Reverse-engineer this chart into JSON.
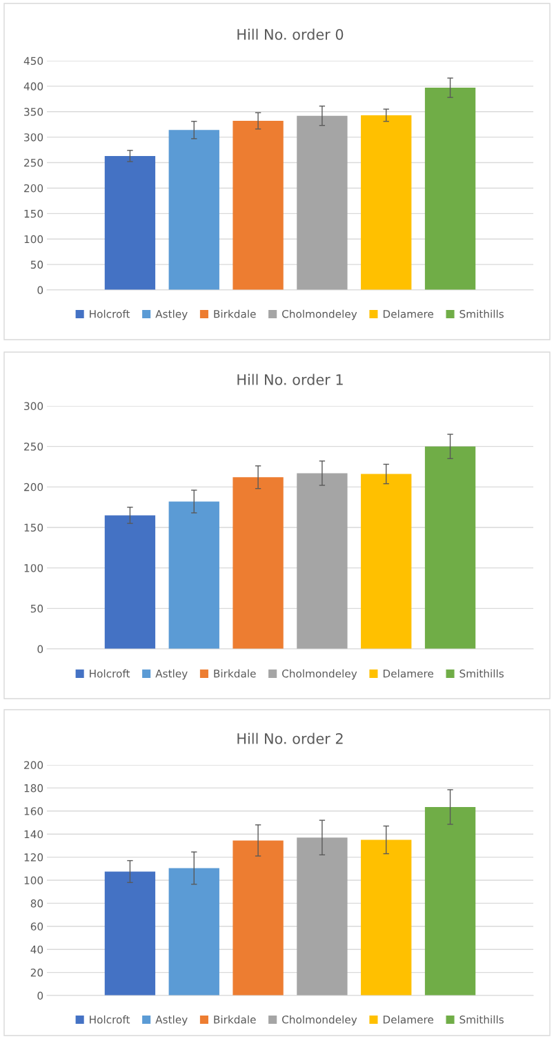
{
  "chart_data": [
    {
      "type": "bar",
      "title": "Hill No. order 0",
      "categories": [
        null
      ],
      "ylim": [
        0,
        450
      ],
      "yticks": [
        0,
        50,
        100,
        150,
        200,
        250,
        300,
        350,
        400,
        450
      ],
      "grid": "y",
      "legend": "bottom",
      "series": [
        {
          "name": "Holcroft",
          "color": "#4472c4",
          "values": [
            263
          ],
          "errors": [
            11
          ]
        },
        {
          "name": "Astley",
          "color": "#5b9bd5",
          "values": [
            314
          ],
          "errors": [
            17
          ]
        },
        {
          "name": "Birkdale",
          "color": "#ed7d31",
          "values": [
            332
          ],
          "errors": [
            16
          ]
        },
        {
          "name": "Cholmondeley",
          "color": "#a5a5a5",
          "values": [
            342
          ],
          "errors": [
            19
          ]
        },
        {
          "name": "Delamere",
          "color": "#ffc000",
          "values": [
            343
          ],
          "errors": [
            12
          ]
        },
        {
          "name": "Smithills",
          "color": "#70ad47",
          "values": [
            397
          ],
          "errors": [
            19
          ]
        }
      ]
    },
    {
      "type": "bar",
      "title": "Hill No. order 1",
      "categories": [
        null
      ],
      "ylim": [
        0,
        300
      ],
      "yticks": [
        0,
        50,
        100,
        150,
        200,
        250,
        300
      ],
      "grid": "y",
      "legend": "bottom",
      "series": [
        {
          "name": "Holcroft",
          "color": "#4472c4",
          "values": [
            165
          ],
          "errors": [
            10
          ]
        },
        {
          "name": "Astley",
          "color": "#5b9bd5",
          "values": [
            182
          ],
          "errors": [
            14
          ]
        },
        {
          "name": "Birkdale",
          "color": "#ed7d31",
          "values": [
            212
          ],
          "errors": [
            14
          ]
        },
        {
          "name": "Cholmondeley",
          "color": "#a5a5a5",
          "values": [
            217
          ],
          "errors": [
            15
          ]
        },
        {
          "name": "Delamere",
          "color": "#ffc000",
          "values": [
            216
          ],
          "errors": [
            12
          ]
        },
        {
          "name": "Smithills",
          "color": "#70ad47",
          "values": [
            250
          ],
          "errors": [
            15
          ]
        }
      ]
    },
    {
      "type": "bar",
      "title": "Hill No. order 2",
      "categories": [
        null
      ],
      "ylim": [
        0,
        200
      ],
      "yticks": [
        0,
        20,
        40,
        60,
        80,
        100,
        120,
        140,
        160,
        180,
        200
      ],
      "grid": "y",
      "legend": "bottom",
      "series": [
        {
          "name": "Holcroft",
          "color": "#4472c4",
          "values": [
            107.5
          ],
          "errors": [
            9.5
          ]
        },
        {
          "name": "Astley",
          "color": "#5b9bd5",
          "values": [
            110.5
          ],
          "errors": [
            14
          ]
        },
        {
          "name": "Birkdale",
          "color": "#ed7d31",
          "values": [
            134.5
          ],
          "errors": [
            13.5
          ]
        },
        {
          "name": "Cholmondeley",
          "color": "#a5a5a5",
          "values": [
            137
          ],
          "errors": [
            15
          ]
        },
        {
          "name": "Delamere",
          "color": "#ffc000",
          "values": [
            135
          ],
          "errors": [
            12
          ]
        },
        {
          "name": "Smithills",
          "color": "#70ad47",
          "values": [
            163.5
          ],
          "errors": [
            15
          ]
        }
      ]
    }
  ]
}
